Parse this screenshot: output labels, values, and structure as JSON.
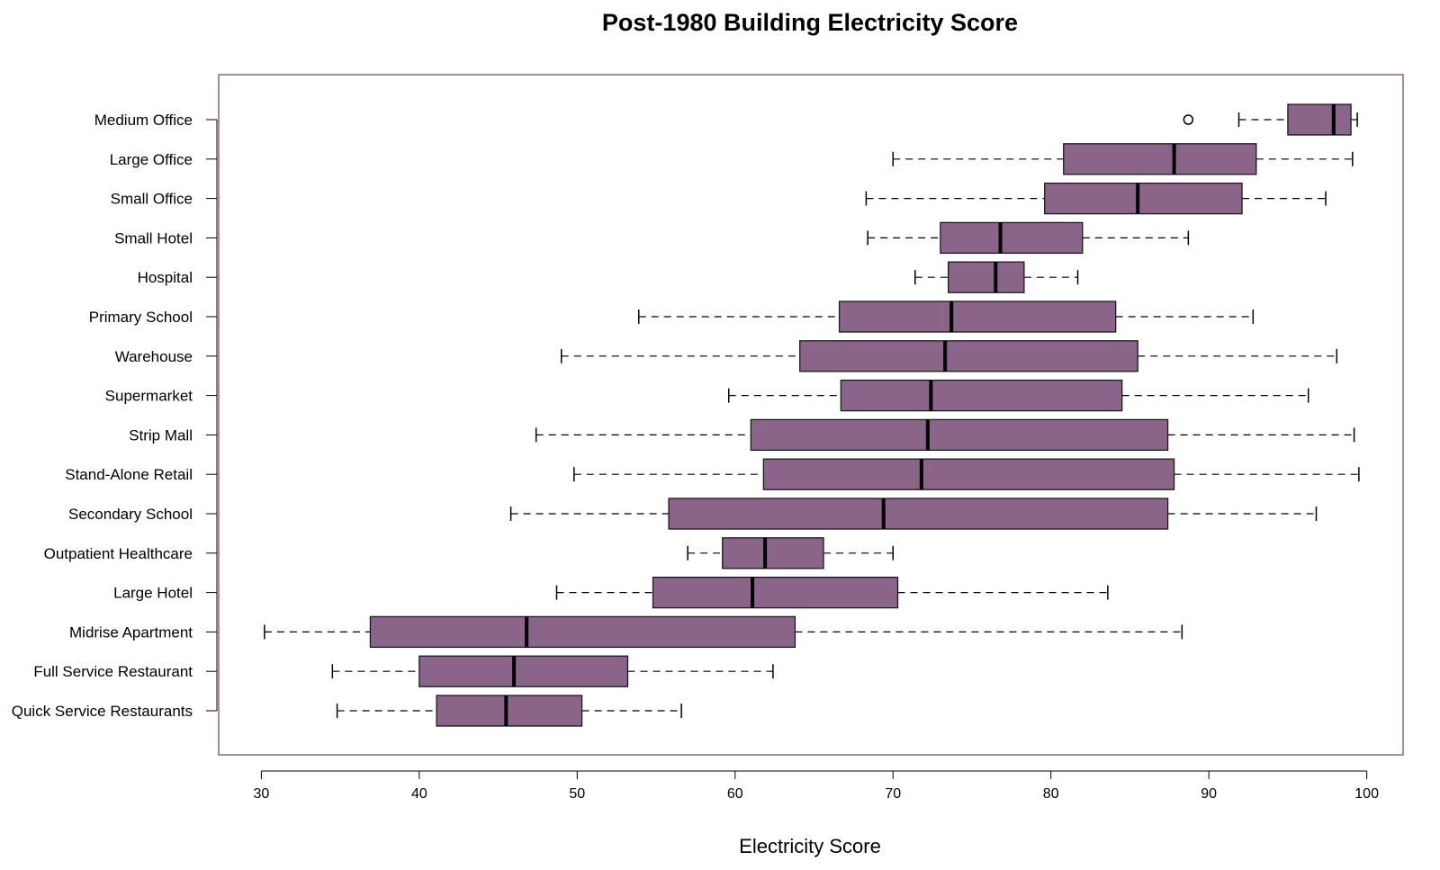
{
  "chart_data": {
    "type": "boxplot",
    "orientation": "horizontal",
    "title": "Post-1980 Building Electricity Score",
    "xlabel": "Electricity Score",
    "ylabel": "",
    "xlim": [
      27.3,
      102.3
    ],
    "xticks": [
      30,
      40,
      50,
      60,
      70,
      80,
      90,
      100
    ],
    "grid": false,
    "legend": "none",
    "colors": {
      "box_fill": "#8a6589",
      "box_stroke": "#1a1a1a",
      "frame": "#8a6589",
      "text": "#000000"
    },
    "categories": [
      "Medium Office",
      "Large Office",
      "Small Office",
      "Small Hotel",
      "Hospital",
      "Primary School",
      "Warehouse",
      "Supermarket",
      "Strip Mall",
      "Stand-Alone Retail",
      "Secondary School",
      "Outpatient Healthcare",
      "Large Hotel",
      "Midrise Apartment",
      "Full Service Restaurant",
      "Quick Service Restaurants"
    ],
    "boxes": [
      {
        "category": "Medium Office",
        "whisker_low": 91.9,
        "q1": 95.0,
        "median": 97.9,
        "q3": 99.0,
        "whisker_high": 99.4,
        "outliers": [
          88.7
        ]
      },
      {
        "category": "Large Office",
        "whisker_low": 70.0,
        "q1": 80.8,
        "median": 87.8,
        "q3": 93.0,
        "whisker_high": 99.1,
        "outliers": []
      },
      {
        "category": "Small Office",
        "whisker_low": 68.3,
        "q1": 79.6,
        "median": 85.5,
        "q3": 92.1,
        "whisker_high": 97.4,
        "outliers": []
      },
      {
        "category": "Small Hotel",
        "whisker_low": 68.4,
        "q1": 73.0,
        "median": 76.8,
        "q3": 82.0,
        "whisker_high": 88.7,
        "outliers": []
      },
      {
        "category": "Hospital",
        "whisker_low": 71.4,
        "q1": 73.5,
        "median": 76.5,
        "q3": 78.3,
        "whisker_high": 81.7,
        "outliers": []
      },
      {
        "category": "Primary School",
        "whisker_low": 53.9,
        "q1": 66.6,
        "median": 73.7,
        "q3": 84.1,
        "whisker_high": 92.8,
        "outliers": []
      },
      {
        "category": "Warehouse",
        "whisker_low": 49.0,
        "q1": 64.1,
        "median": 73.3,
        "q3": 85.5,
        "whisker_high": 98.1,
        "outliers": []
      },
      {
        "category": "Supermarket",
        "whisker_low": 59.6,
        "q1": 66.7,
        "median": 72.4,
        "q3": 84.5,
        "whisker_high": 96.3,
        "outliers": []
      },
      {
        "category": "Strip Mall",
        "whisker_low": 47.4,
        "q1": 61.0,
        "median": 72.2,
        "q3": 87.4,
        "whisker_high": 99.2,
        "outliers": []
      },
      {
        "category": "Stand-Alone Retail",
        "whisker_low": 49.8,
        "q1": 61.8,
        "median": 71.8,
        "q3": 87.8,
        "whisker_high": 99.5,
        "outliers": []
      },
      {
        "category": "Secondary School",
        "whisker_low": 45.8,
        "q1": 55.8,
        "median": 69.4,
        "q3": 87.4,
        "whisker_high": 96.8,
        "outliers": []
      },
      {
        "category": "Outpatient Healthcare",
        "whisker_low": 57.0,
        "q1": 59.2,
        "median": 61.9,
        "q3": 65.6,
        "whisker_high": 70.0,
        "outliers": []
      },
      {
        "category": "Large Hotel",
        "whisker_low": 48.7,
        "q1": 54.8,
        "median": 61.1,
        "q3": 70.3,
        "whisker_high": 83.6,
        "outliers": []
      },
      {
        "category": "Midrise Apartment",
        "whisker_low": 30.2,
        "q1": 36.9,
        "median": 46.8,
        "q3": 63.8,
        "whisker_high": 88.3,
        "outliers": []
      },
      {
        "category": "Full Service Restaurant",
        "whisker_low": 34.5,
        "q1": 40.0,
        "median": 46.0,
        "q3": 53.2,
        "whisker_high": 62.4,
        "outliers": []
      },
      {
        "category": "Quick Service Restaurants",
        "whisker_low": 34.8,
        "q1": 41.1,
        "median": 45.5,
        "q3": 50.3,
        "whisker_high": 56.6,
        "outliers": []
      }
    ]
  }
}
